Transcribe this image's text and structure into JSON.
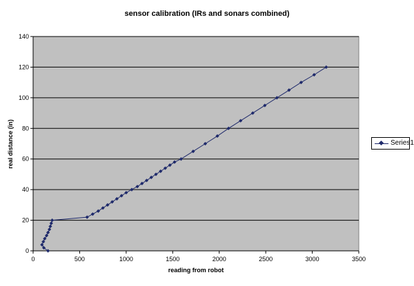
{
  "chart_data": {
    "type": "line",
    "title": "sensor calibration (IRs and sonars combined)",
    "xlabel": "reading from robot",
    "ylabel": "real distance (in)",
    "xlim": [
      0,
      3500
    ],
    "ylim": [
      0,
      140
    ],
    "x_ticks": [
      0,
      500,
      1000,
      1500,
      2000,
      2500,
      3000,
      3500
    ],
    "y_ticks": [
      0,
      20,
      40,
      60,
      80,
      100,
      120,
      140
    ],
    "grid": "horizontal",
    "plot_background": "#c0c0c0",
    "series_color": "#1f2a6b",
    "legend_position": "right",
    "series": [
      {
        "name": "Series1",
        "points": [
          [
            160,
            0
          ],
          [
            115,
            2
          ],
          [
            95,
            4
          ],
          [
            110,
            6
          ],
          [
            125,
            8
          ],
          [
            145,
            10
          ],
          [
            160,
            12
          ],
          [
            175,
            14
          ],
          [
            185,
            16
          ],
          [
            195,
            18
          ],
          [
            205,
            20
          ],
          [
            580,
            22
          ],
          [
            640,
            24
          ],
          [
            700,
            26
          ],
          [
            750,
            28
          ],
          [
            800,
            30
          ],
          [
            850,
            32
          ],
          [
            900,
            34
          ],
          [
            950,
            36
          ],
          [
            1000,
            38
          ],
          [
            1060,
            40
          ],
          [
            1120,
            42
          ],
          [
            1170,
            44
          ],
          [
            1220,
            46
          ],
          [
            1270,
            48
          ],
          [
            1320,
            50
          ],
          [
            1370,
            52
          ],
          [
            1420,
            54
          ],
          [
            1470,
            56
          ],
          [
            1520,
            58
          ],
          [
            1590,
            60
          ],
          [
            1720,
            65
          ],
          [
            1850,
            70
          ],
          [
            1980,
            75
          ],
          [
            2100,
            80
          ],
          [
            2230,
            85
          ],
          [
            2360,
            90
          ],
          [
            2490,
            95
          ],
          [
            2620,
            100
          ],
          [
            2750,
            105
          ],
          [
            2880,
            110
          ],
          [
            3020,
            115
          ],
          [
            3150,
            120
          ]
        ]
      }
    ]
  }
}
